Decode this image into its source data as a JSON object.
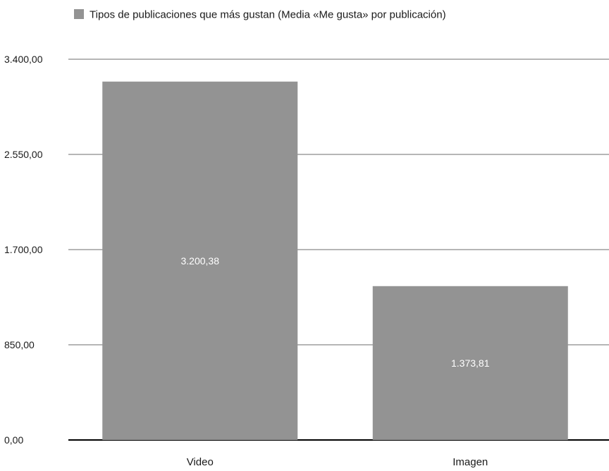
{
  "chart_data": {
    "type": "bar",
    "categories": [
      "Video",
      "Imagen"
    ],
    "series": [
      {
        "name": "Tipos de publicaciones que más gustan (Media «Me gusta» por publicación)",
        "values": [
          3200.38,
          1373.81
        ],
        "color": "#939393"
      }
    ],
    "value_labels": [
      "3.200,38",
      "1.373,81"
    ],
    "y_ticks": [
      0,
      850,
      1700,
      2550,
      3400
    ],
    "y_tick_labels": [
      "0,00",
      "850,00",
      "1.700,00",
      "2.550,00",
      "3.400,00"
    ],
    "ylim": [
      0,
      3400
    ],
    "grid": true,
    "legend_position": "top",
    "colors": {
      "bar": "#939393",
      "gridline": "#9e9e9e",
      "baseline": "#000000",
      "value_label": "#ffffff",
      "text": "#1a1a1a"
    }
  }
}
